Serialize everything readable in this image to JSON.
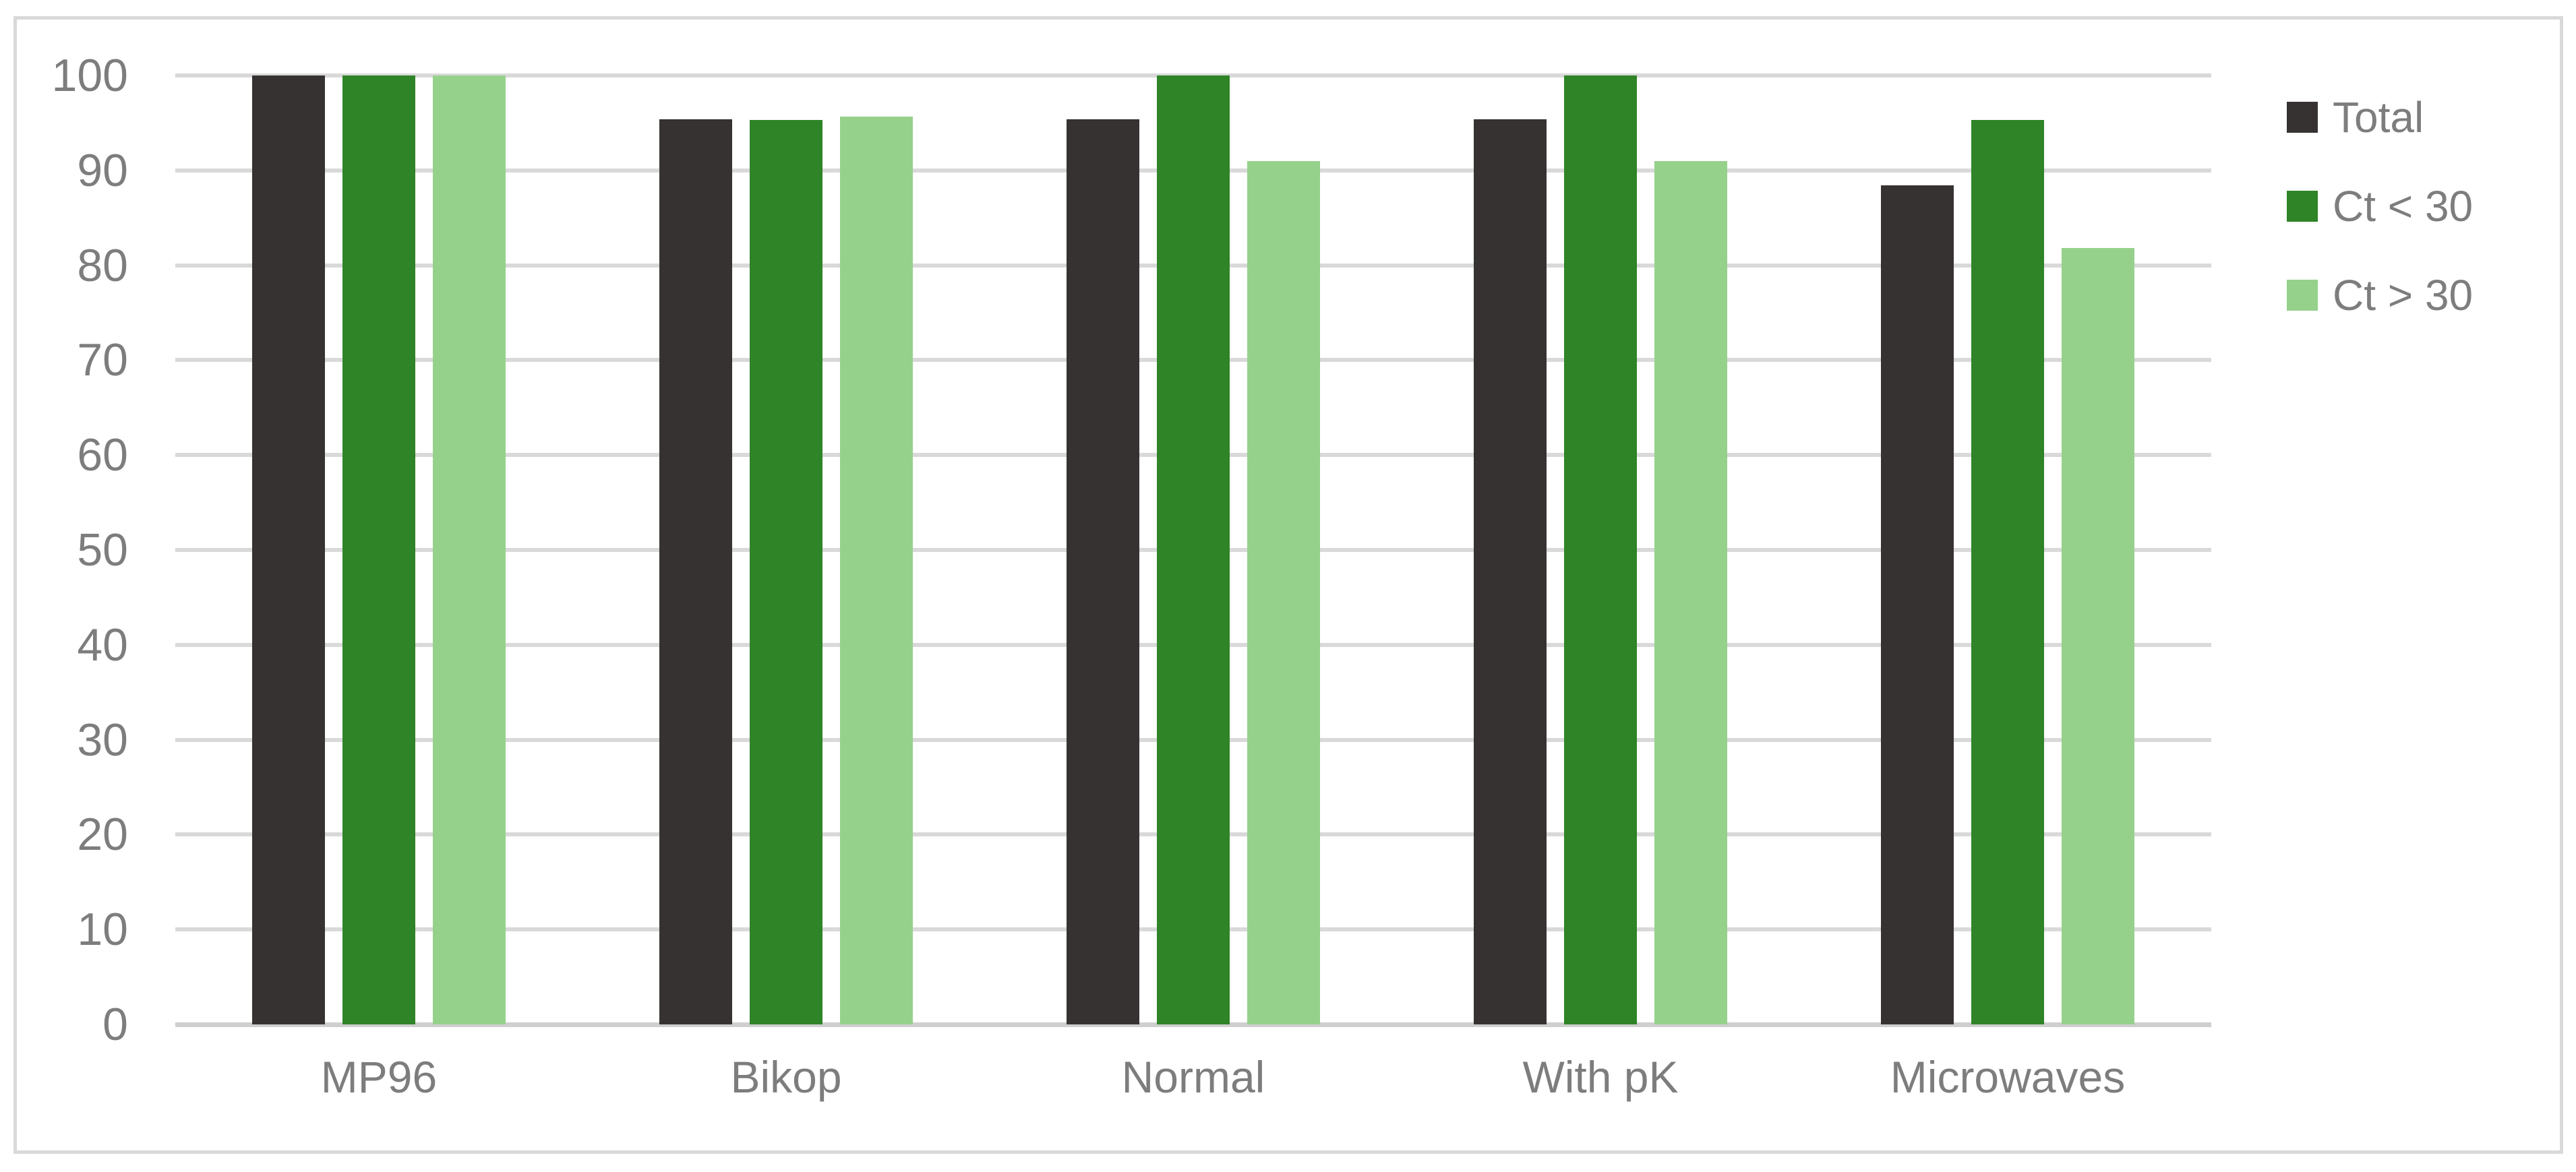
{
  "chart_data": {
    "type": "bar",
    "title": "",
    "xlabel": "",
    "ylabel": "",
    "categories": [
      "MP96",
      "Bikop",
      "Normal",
      "With pK",
      "Microwaves"
    ],
    "series": [
      {
        "name": "Total",
        "color": "#373232",
        "values": [
          100,
          95.4,
          95.4,
          95.4,
          88.4
        ]
      },
      {
        "name": "Ct < 30",
        "color": "#2e8427",
        "values": [
          100,
          95.3,
          100,
          100,
          95.3
        ]
      },
      {
        "name": "Ct > 30",
        "color": "#95d18b",
        "values": [
          100,
          95.7,
          91,
          91,
          81.8
        ]
      }
    ],
    "ylim": [
      0,
      100
    ],
    "yticks": [
      0,
      10,
      20,
      30,
      40,
      50,
      60,
      70,
      80,
      90,
      100
    ],
    "grid": true,
    "legend_position": "top-right"
  },
  "colors": {
    "text": "#7d7d7d",
    "gridline": "#d9d9d9",
    "axis_line": "#cfcfcf",
    "frame_border": "#d9d9d9",
    "background": "#ffffff"
  }
}
